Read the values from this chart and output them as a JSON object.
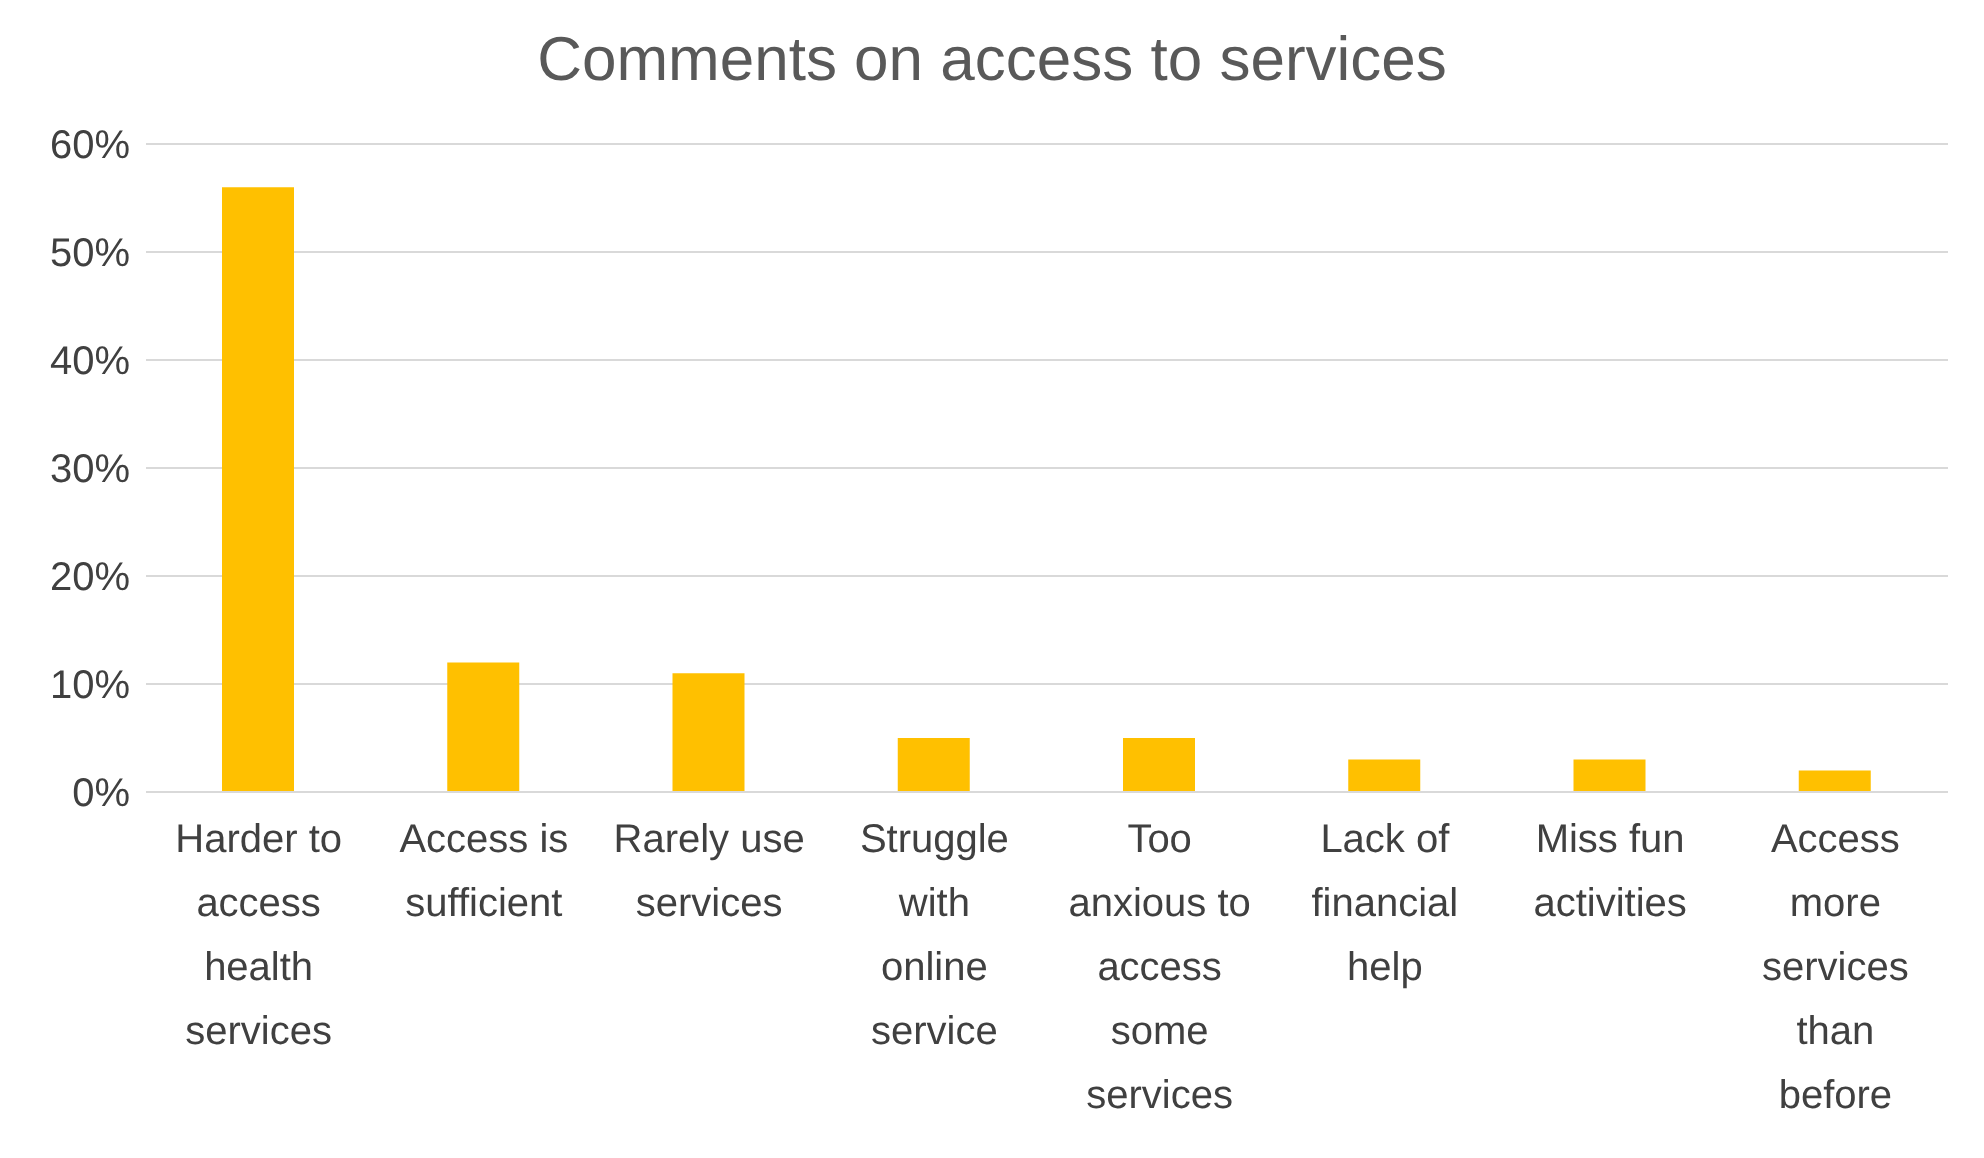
{
  "chart_data": {
    "type": "bar",
    "title": "Comments on access to services",
    "categories": [
      "Harder to access health services",
      "Access is sufficient",
      "Rarely use services",
      "Struggle with online service",
      "Too anxious to access some services",
      "Lack of financial help",
      "Miss fun activities",
      "Access more services than before"
    ],
    "values": [
      56,
      12,
      11,
      5,
      5,
      3,
      3,
      2
    ],
    "color": "#ffc000",
    "ylim": [
      0,
      60
    ],
    "yticks": [
      {
        "value": 0,
        "label": "0%"
      },
      {
        "value": 10,
        "label": "10%"
      },
      {
        "value": 20,
        "label": "20%"
      },
      {
        "value": 30,
        "label": "30%"
      },
      {
        "value": 40,
        "label": "40%"
      },
      {
        "value": 50,
        "label": "50%"
      },
      {
        "value": 60,
        "label": "60%"
      }
    ],
    "grid": "y",
    "legend": false
  }
}
